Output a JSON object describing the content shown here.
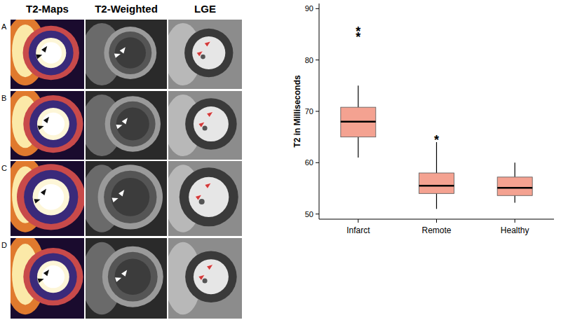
{
  "panels": {
    "columns": [
      "T2-Maps",
      "T2-Weighted",
      "LGE"
    ],
    "rows": [
      "A",
      "B",
      "C",
      "D"
    ]
  },
  "chart_data": {
    "type": "box",
    "y_label": "T2 in Milliseconds",
    "categories": [
      "Infarct",
      "Remote",
      "Healthy"
    ],
    "boxes": [
      {
        "min": 61,
        "q1": 65,
        "median": 68,
        "q3": 70.8,
        "max": 75
      },
      {
        "min": 51,
        "q1": 54,
        "median": 55.5,
        "q3": 58,
        "max": 64
      },
      {
        "min": 52.2,
        "q1": 53.6,
        "median": 55.1,
        "q3": 57.2,
        "max": 60
      }
    ],
    "color": "#f4a291",
    "ylim": [
      49,
      91
    ],
    "yticks": [
      50,
      60,
      70,
      80,
      90
    ],
    "grid": false,
    "annotations": [
      {
        "text": "**",
        "category": 0,
        "y": 85
      },
      {
        "text": "*",
        "category": 1,
        "y": 65
      }
    ]
  }
}
